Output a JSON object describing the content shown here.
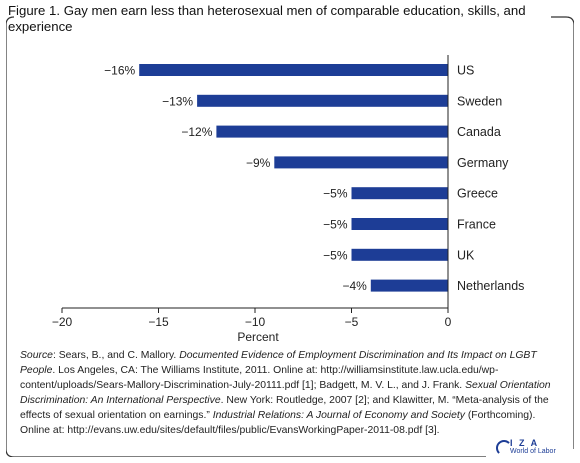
{
  "figure": {
    "title": "Figure 1. Gay men earn less than heterosexual men of comparable education, skills, and experience"
  },
  "chart_data": {
    "type": "bar",
    "orientation": "horizontal",
    "categories": [
      "US",
      "Sweden",
      "Canada",
      "Germany",
      "Greece",
      "France",
      "UK",
      "Netherlands"
    ],
    "values": [
      -16,
      -13,
      -12,
      -9,
      -5,
      -5,
      -5,
      -4
    ],
    "data_labels": [
      "−16%",
      "−13%",
      "−12%",
      "−9%",
      "−5%",
      "−5%",
      "−5%",
      "−4%"
    ],
    "xlabel": "Percent",
    "xlim": [
      -20,
      0
    ],
    "xticks": [
      -20,
      -15,
      -10,
      -5,
      0
    ],
    "xtick_labels": [
      "−20",
      "−15",
      "−10",
      "−5",
      "0"
    ],
    "bar_color": "#1d3d96",
    "grid": false
  },
  "source": {
    "label": "Source",
    "t1": ": Sears, B., and C. Mallory. ",
    "i1": "Documented Evidence of Employment Discrimination and Its Impact on LGBT People",
    "t2": ". Los Angeles, CA: The Williams Institute, 2011. Online at: http://williamsinstitute.law.ucla.edu/wp-content/uploads/Sears-Mallory-Discrimination-July-20111.pdf [1]; Badgett, M. V. L., and J. Frank. ",
    "i2": "Sexual Orientation Discrimination: An International Perspective",
    "t3": ". New York: Routledge, 2007 [2]; and Klawitter, M. “Meta-analysis of the effects of sexual orientation on earnings.” ",
    "i3": "Industrial Relations: A Journal of Economy and Society",
    "t4": " (Forthcoming). Online at: http://evans.uw.edu/sites/default/files/public/EvansWorkingPaper-2011-08.pdf [3]."
  },
  "logo": {
    "name": "I Z A",
    "tagline": "World of Labor",
    "color": "#1d3d96"
  }
}
